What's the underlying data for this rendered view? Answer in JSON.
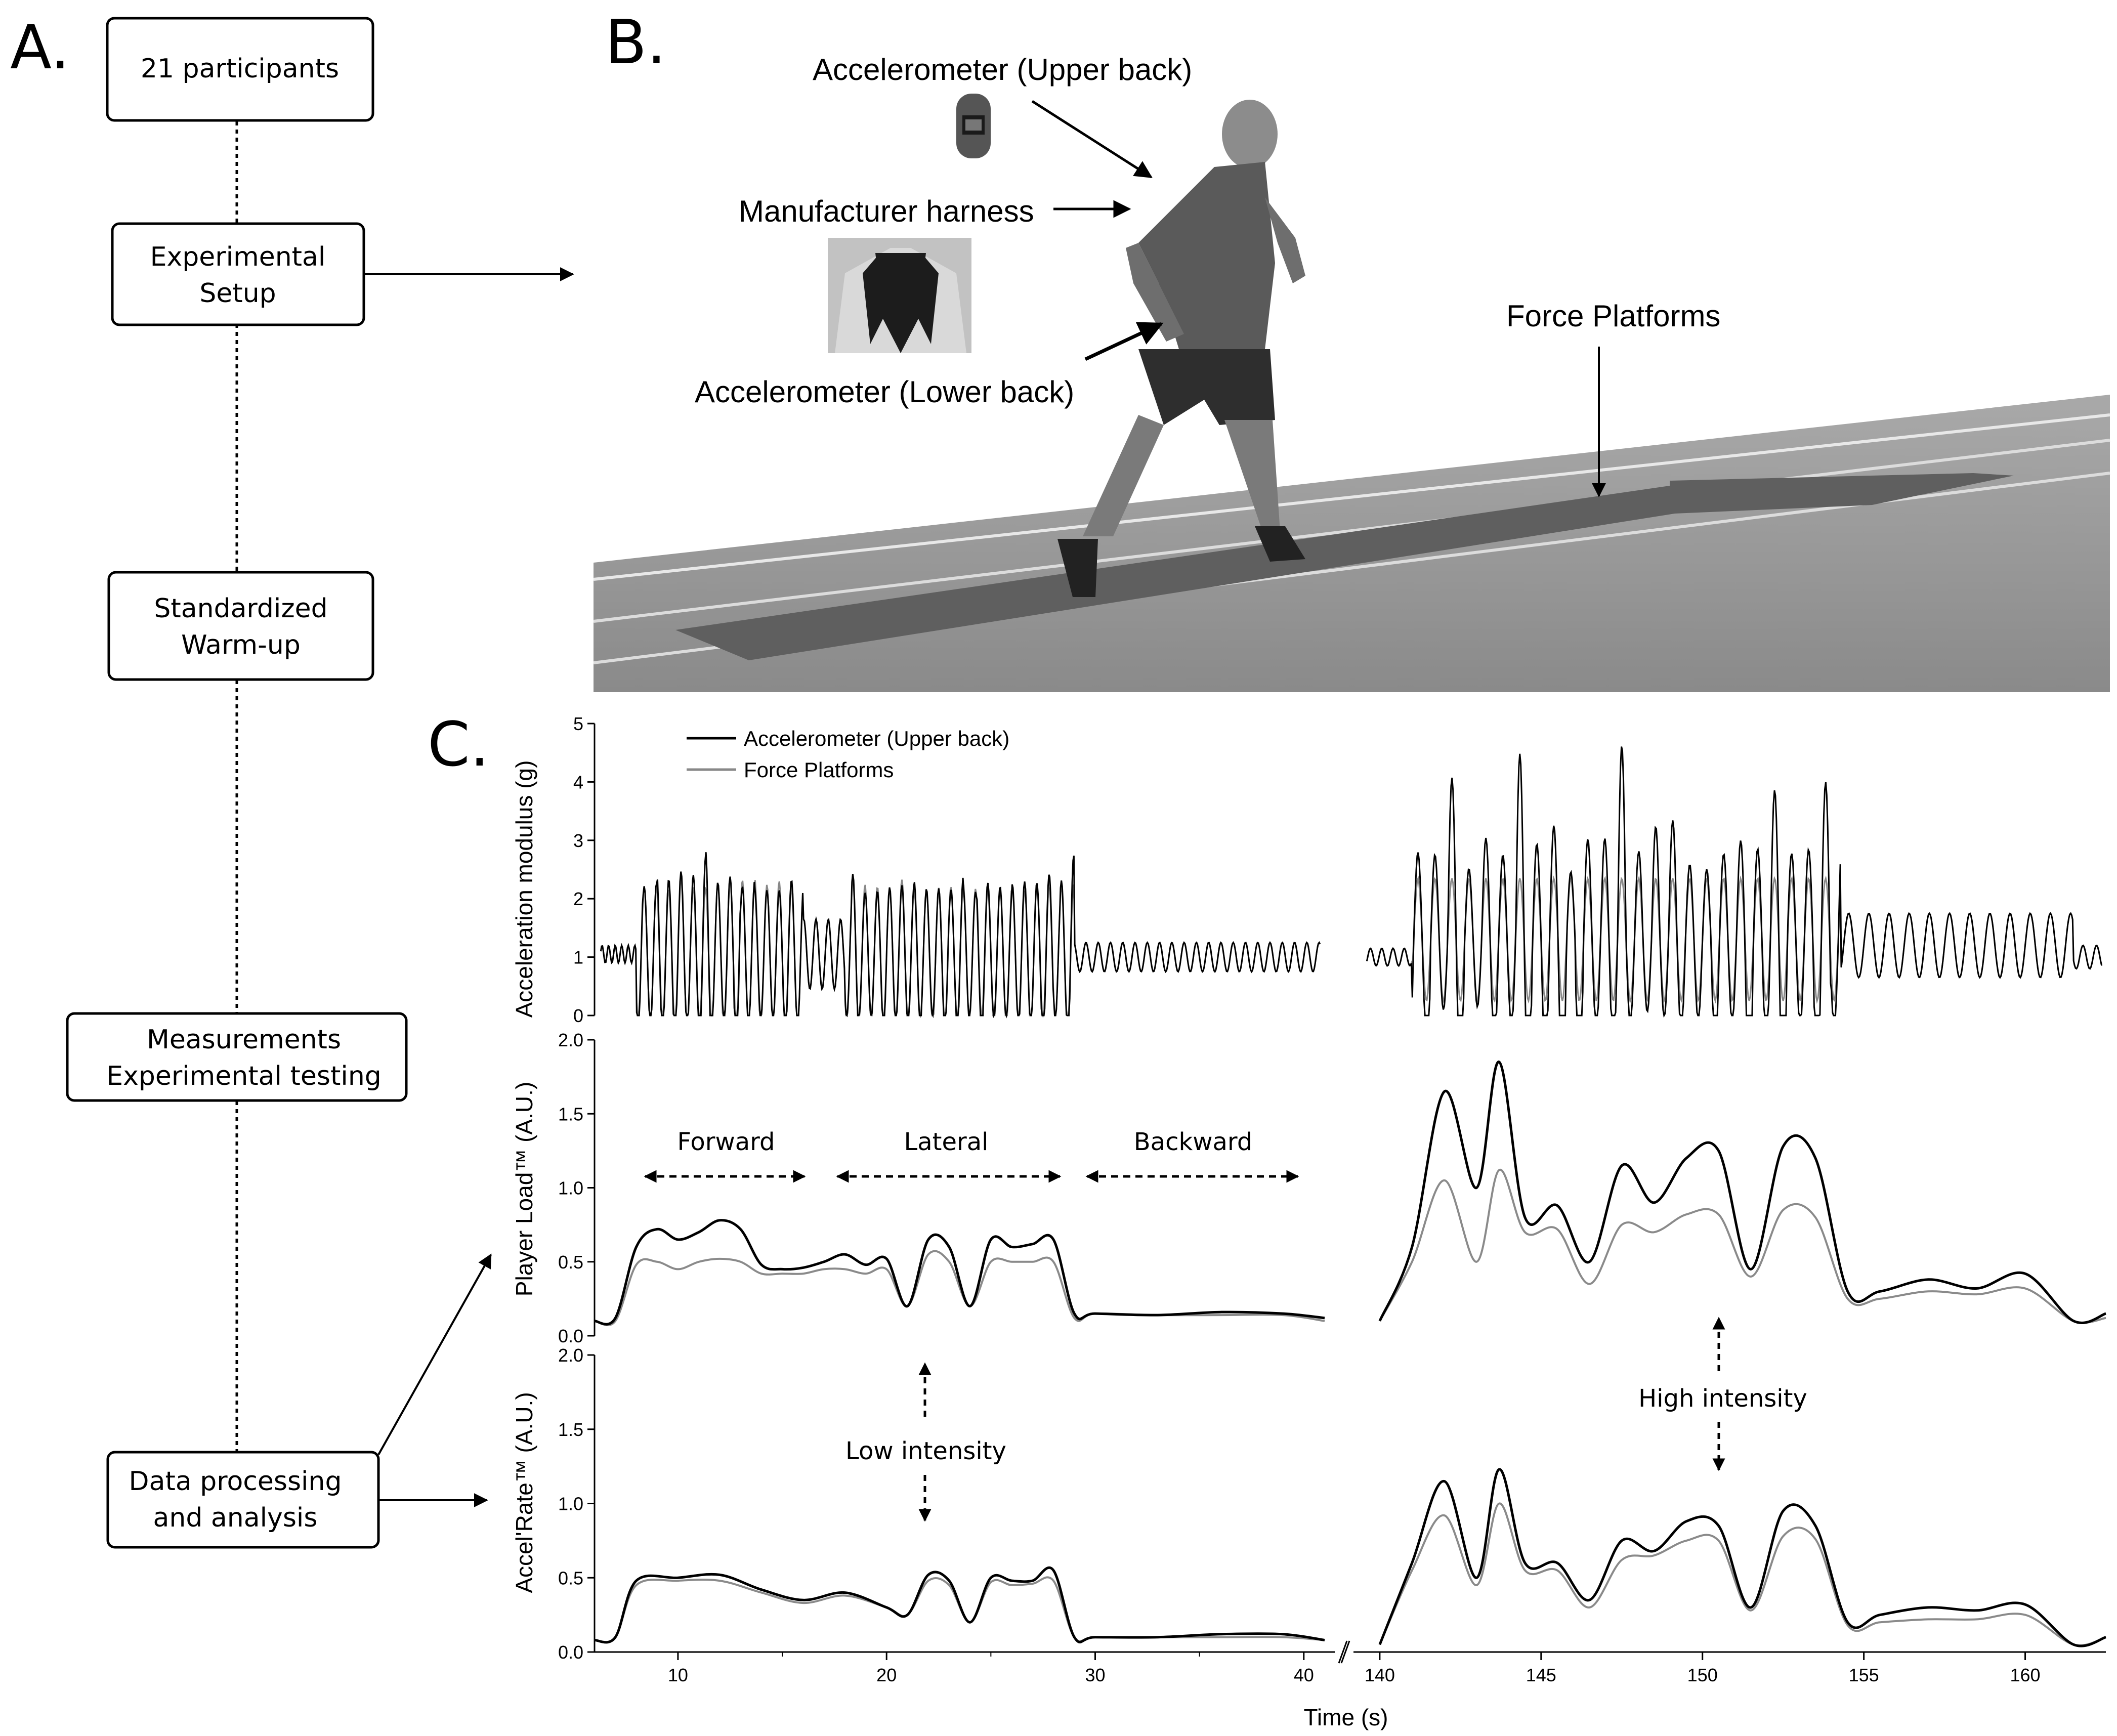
{
  "panel_a": {
    "letter": "A.",
    "steps": [
      "21 participants",
      "Experimental\nSetup",
      "Standardized\nWarm-up",
      "Measurements\nExperimental testing",
      "Data processing\nand analysis"
    ]
  },
  "panel_b": {
    "letter": "B.",
    "labels": {
      "upper_back": "Accelerometer (Upper back)",
      "harness": "Manufacturer harness",
      "lower_back": "Accelerometer (Lower back)",
      "force_platforms": "Force Platforms"
    }
  },
  "panel_c": {
    "letter": "C.",
    "legend": [
      "Accelerometer (Upper back)",
      "Force Platforms"
    ],
    "ylabels": [
      "Acceleration modulus (g)",
      "Player Load™ (A.U.)",
      "Accel'Rate™ (A.U.)"
    ],
    "xlabel": "Time (s)",
    "phases": [
      "Forward",
      "Lateral",
      "Backward"
    ],
    "intensity": [
      "Low intensity",
      "High intensity"
    ]
  },
  "chart_data": [
    {
      "type": "line",
      "title": "",
      "ylabel": "Acceleration modulus (g)",
      "xlabel": "Time (s)",
      "ylim": [
        0,
        5
      ],
      "yticks": [
        0,
        1,
        2,
        3,
        4,
        5
      ],
      "x_segments": [
        [
          6,
          41
        ],
        [
          139.5,
          162.5
        ]
      ],
      "xticks": [
        10,
        20,
        30,
        40,
        140,
        145,
        150,
        155,
        160
      ],
      "series": [
        {
          "name": "Accelerometer (Upper back)",
          "description": "oscillating signal, peaks ~2.4 g (max ~2.75) during 8-29 s, ~1.3 g during 29-41 s; 141-154 s peaks up to ~4.4 g; 154-162 s ~1.5-2 g"
        },
        {
          "name": "Force Platforms",
          "description": "oscillating signal closely following accelerometer, peaks ~2.0-2.3 g"
        }
      ]
    },
    {
      "type": "line",
      "ylabel": "Player Load™ (A.U.)",
      "ylim": [
        0,
        2.0
      ],
      "yticks": [
        0.0,
        0.5,
        1.0,
        1.5,
        2.0
      ],
      "series": [
        {
          "name": "Accelerometer (Upper back)",
          "x": [
            6,
            7,
            8,
            9,
            10,
            11,
            12,
            13,
            14,
            15,
            16,
            17,
            18,
            19,
            20,
            21,
            22,
            23,
            24,
            25,
            26,
            27,
            28,
            29,
            30,
            33,
            36,
            39,
            41
          ],
          "y": [
            0.1,
            0.12,
            0.6,
            0.72,
            0.65,
            0.7,
            0.78,
            0.72,
            0.48,
            0.45,
            0.46,
            0.5,
            0.55,
            0.48,
            0.52,
            0.2,
            0.65,
            0.6,
            0.2,
            0.65,
            0.6,
            0.62,
            0.65,
            0.15,
            0.15,
            0.14,
            0.16,
            0.15,
            0.12
          ]
        },
        {
          "name": "Force Platforms",
          "x": [
            6,
            7,
            8,
            9,
            10,
            11,
            12,
            13,
            14,
            15,
            16,
            17,
            18,
            19,
            20,
            21,
            22,
            23,
            24,
            25,
            26,
            27,
            28,
            29,
            30,
            33,
            36,
            39,
            41
          ],
          "y": [
            0.1,
            0.1,
            0.48,
            0.5,
            0.45,
            0.5,
            0.52,
            0.5,
            0.42,
            0.42,
            0.42,
            0.45,
            0.45,
            0.42,
            0.45,
            0.2,
            0.55,
            0.5,
            0.2,
            0.5,
            0.5,
            0.5,
            0.5,
            0.12,
            0.15,
            0.14,
            0.14,
            0.14,
            0.1
          ]
        },
        {
          "name": "Accelerometer (Upper back) high",
          "x": [
            140,
            141,
            142,
            143,
            143.7,
            144.5,
            145.5,
            146.5,
            147.5,
            148.5,
            149.5,
            150.5,
            151.5,
            152.5,
            153.5,
            154.5,
            155.5,
            157,
            158.5,
            160,
            161.5,
            162.5
          ],
          "y": [
            0.1,
            0.6,
            1.65,
            1.0,
            1.85,
            0.8,
            0.88,
            0.5,
            1.15,
            0.9,
            1.2,
            1.25,
            0.45,
            1.28,
            1.2,
            0.3,
            0.3,
            0.38,
            0.32,
            0.42,
            0.1,
            0.15
          ]
        },
        {
          "name": "Force Platforms high",
          "x": [
            140,
            141,
            142,
            143,
            143.7,
            144.5,
            145.5,
            146.5,
            147.5,
            148.5,
            149.5,
            150.5,
            151.5,
            152.5,
            153.5,
            154.5,
            155.5,
            157,
            158.5,
            160,
            161.5,
            162.5
          ],
          "y": [
            0.1,
            0.5,
            1.05,
            0.5,
            1.12,
            0.7,
            0.72,
            0.35,
            0.75,
            0.7,
            0.82,
            0.82,
            0.4,
            0.85,
            0.8,
            0.25,
            0.25,
            0.3,
            0.28,
            0.32,
            0.1,
            0.12
          ]
        }
      ]
    },
    {
      "type": "line",
      "ylabel": "Accel'Rate™ (A.U.)",
      "ylim": [
        0,
        2.0
      ],
      "yticks": [
        0.0,
        0.5,
        1.0,
        1.5,
        2.0
      ],
      "series": [
        {
          "name": "Accelerometer (Upper back)",
          "x": [
            6,
            7,
            8,
            10,
            12,
            14,
            16,
            18,
            20,
            21,
            22,
            23,
            24,
            25,
            26,
            27,
            28,
            29,
            30,
            33,
            36,
            39,
            41
          ],
          "y": [
            0.08,
            0.1,
            0.48,
            0.5,
            0.52,
            0.42,
            0.35,
            0.4,
            0.3,
            0.25,
            0.52,
            0.48,
            0.2,
            0.5,
            0.48,
            0.48,
            0.55,
            0.1,
            0.1,
            0.1,
            0.12,
            0.12,
            0.08
          ]
        },
        {
          "name": "Force Platforms",
          "x": [
            6,
            7,
            8,
            10,
            12,
            14,
            16,
            18,
            20,
            21,
            22,
            23,
            24,
            25,
            26,
            27,
            28,
            29,
            30,
            33,
            36,
            39,
            41
          ],
          "y": [
            0.08,
            0.1,
            0.45,
            0.48,
            0.48,
            0.4,
            0.33,
            0.38,
            0.3,
            0.25,
            0.48,
            0.45,
            0.2,
            0.47,
            0.45,
            0.46,
            0.48,
            0.1,
            0.1,
            0.1,
            0.1,
            0.1,
            0.08
          ]
        },
        {
          "name": "Accelerometer (Upper back) high",
          "x": [
            140,
            141,
            142,
            143,
            143.7,
            144.5,
            145.5,
            146.5,
            147.5,
            148.5,
            149.5,
            150.5,
            151.5,
            152.5,
            153.5,
            154.5,
            155.5,
            157,
            158.5,
            160,
            161.5,
            162.5
          ],
          "y": [
            0.05,
            0.6,
            1.15,
            0.5,
            1.23,
            0.6,
            0.6,
            0.35,
            0.75,
            0.68,
            0.88,
            0.85,
            0.3,
            0.95,
            0.85,
            0.2,
            0.25,
            0.3,
            0.28,
            0.32,
            0.05,
            0.1
          ]
        },
        {
          "name": "Force Platforms high",
          "x": [
            140,
            141,
            142,
            143,
            143.7,
            144.5,
            145.5,
            146.5,
            147.5,
            148.5,
            149.5,
            150.5,
            151.5,
            152.5,
            153.5,
            154.5,
            155.5,
            157,
            158.5,
            160,
            161.5,
            162.5
          ],
          "y": [
            0.05,
            0.55,
            0.92,
            0.45,
            1.0,
            0.55,
            0.55,
            0.3,
            0.62,
            0.65,
            0.75,
            0.75,
            0.28,
            0.78,
            0.76,
            0.18,
            0.2,
            0.22,
            0.22,
            0.25,
            0.05,
            0.1
          ]
        }
      ]
    }
  ]
}
